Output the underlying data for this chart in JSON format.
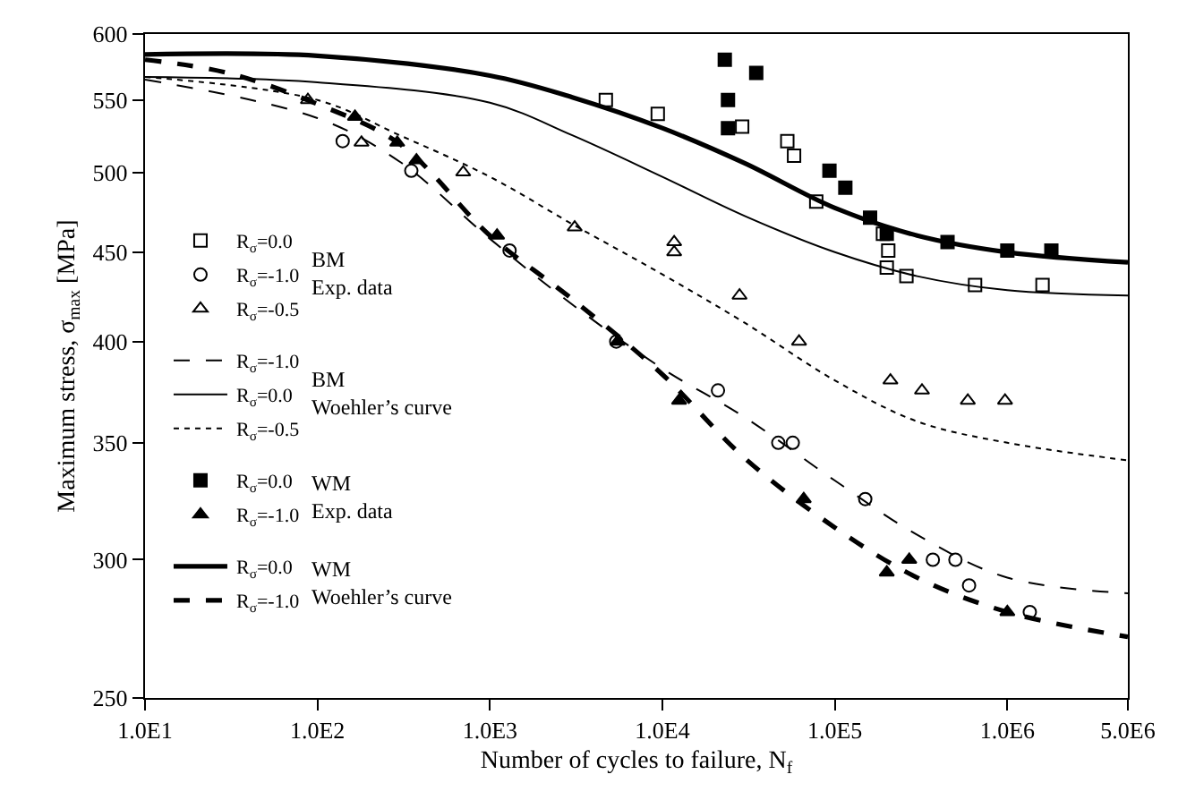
{
  "chart_data": {
    "type": "scatter",
    "xlabel": "Number of cycles to failure, N$_{f}$",
    "ylabel": "Maximum stress, σ$_{max}$ [MPa]",
    "log": "xy",
    "legend": "left",
    "xlim": [
      10,
      5000000
    ],
    "ylim": [
      250,
      600
    ],
    "xticks": [
      {
        "value": 10,
        "label": "1.0E1"
      },
      {
        "value": 100,
        "label": "1.0E2"
      },
      {
        "value": 1000,
        "label": "1.0E3"
      },
      {
        "value": 10000,
        "label": "1.0E4"
      },
      {
        "value": 100000,
        "label": "1.0E5"
      },
      {
        "value": 1000000,
        "label": "1.0E6"
      },
      {
        "value": 5000000,
        "label": "5.0E6"
      }
    ],
    "yticks": [
      250,
      300,
      350,
      400,
      450,
      500,
      550,
      600
    ],
    "annotations": [
      "BM\nExp. data",
      "BM\nWoehler’s curve",
      "WM\nExp. data",
      "WM\nWoehler’s curve"
    ],
    "series": [
      {
        "name": "R$_{σ}$=0.0",
        "marker": "square-open",
        "color": "#000000",
        "x": [
          4700,
          9400,
          29000,
          53000,
          58000,
          78000,
          190000,
          204000,
          200000,
          260000,
          650000,
          1600000
        ],
        "values": [
          550,
          540,
          531,
          521,
          511,
          481,
          461,
          451,
          441,
          436,
          431,
          431
        ]
      },
      {
        "name": "R$_{σ}$=-1.0",
        "marker": "circle-open",
        "color": "#000000",
        "x": [
          140,
          350,
          1300,
          5400,
          21000,
          47000,
          57000,
          150000,
          370000,
          500000,
          600000,
          1350000
        ],
        "values": [
          521,
          501,
          451,
          400,
          375,
          350,
          350,
          325,
          300,
          300,
          290,
          280
        ]
      },
      {
        "name": "R$_{σ}$=-0.5",
        "marker": "triangle-up-open",
        "color": "#000000",
        "x": [
          88,
          180,
          700,
          3100,
          11700,
          11700,
          28000,
          62000,
          210000,
          320000,
          590000,
          970000
        ],
        "values": [
          550,
          520,
          500,
          465,
          456,
          450,
          425,
          400,
          380,
          375,
          370,
          370
        ]
      },
      {
        "name": "R$_{σ}$=-1.0",
        "type": "line",
        "line_style": "dashed",
        "color": "#000000",
        "x": [
          10,
          100,
          300,
          1000,
          3000,
          10000,
          30000,
          100000,
          300000,
          1000000,
          5000000
        ],
        "values": [
          565,
          537,
          507,
          458,
          420,
          386,
          362,
          333,
          310,
          293,
          287
        ]
      },
      {
        "name": "R$_{σ}$=0.0",
        "type": "line",
        "line_style": "solid",
        "color": "#000000",
        "x": [
          10,
          100,
          1000,
          3000,
          10000,
          30000,
          100000,
          300000,
          1000000,
          5000000
        ],
        "values": [
          567,
          563,
          548,
          525,
          497,
          472,
          450,
          436,
          428,
          425
        ]
      },
      {
        "name": "R$_{σ}$=-0.5",
        "type": "line",
        "line_style": "dotted",
        "color": "#000000",
        "x": [
          10,
          100,
          300,
          1000,
          3000,
          10000,
          30000,
          100000,
          300000,
          1000000,
          5000000
        ],
        "values": [
          567,
          550,
          525,
          497,
          467,
          437,
          410,
          380,
          360,
          350,
          342
        ]
      },
      {
        "name": "R$_{σ}$=0.0",
        "marker": "square",
        "color": "#000000",
        "x": [
          23000,
          35000,
          24000,
          24000,
          93000,
          115000,
          160000,
          200000,
          450000,
          1000000,
          1800000
        ],
        "values": [
          580,
          570,
          550,
          530,
          501,
          490,
          471,
          461,
          456,
          451,
          451
        ]
      },
      {
        "name": "R$_{σ}$=-1.0",
        "marker": "triangle-up",
        "color": "#000000",
        "x": [
          165,
          290,
          375,
          1100,
          5500,
          12500,
          66000,
          200000,
          270000,
          1000000
        ],
        "values": [
          538,
          520,
          508,
          460,
          400,
          370,
          325,
          295,
          300,
          280
        ]
      },
      {
        "name": "R$_{σ}$=0.0",
        "type": "line",
        "line_style": "solid",
        "color": "#000000",
        "x": [
          10,
          100,
          1000,
          3000,
          10000,
          30000,
          100000,
          300000,
          1000000,
          5000000
        ],
        "values": [
          584,
          583,
          568,
          552,
          530,
          506,
          477,
          460,
          450,
          444
        ]
      },
      {
        "name": "R$_{σ}$=-1.0",
        "type": "line",
        "line_style": "dashed",
        "color": "#000000",
        "x": [
          10,
          30,
          100,
          300,
          1000,
          3000,
          10000,
          30000,
          100000,
          300000,
          1000000,
          5000000
        ],
        "values": [
          580,
          570,
          547,
          519,
          460,
          423,
          383,
          343,
          313,
          293,
          280,
          271
        ]
      }
    ]
  }
}
